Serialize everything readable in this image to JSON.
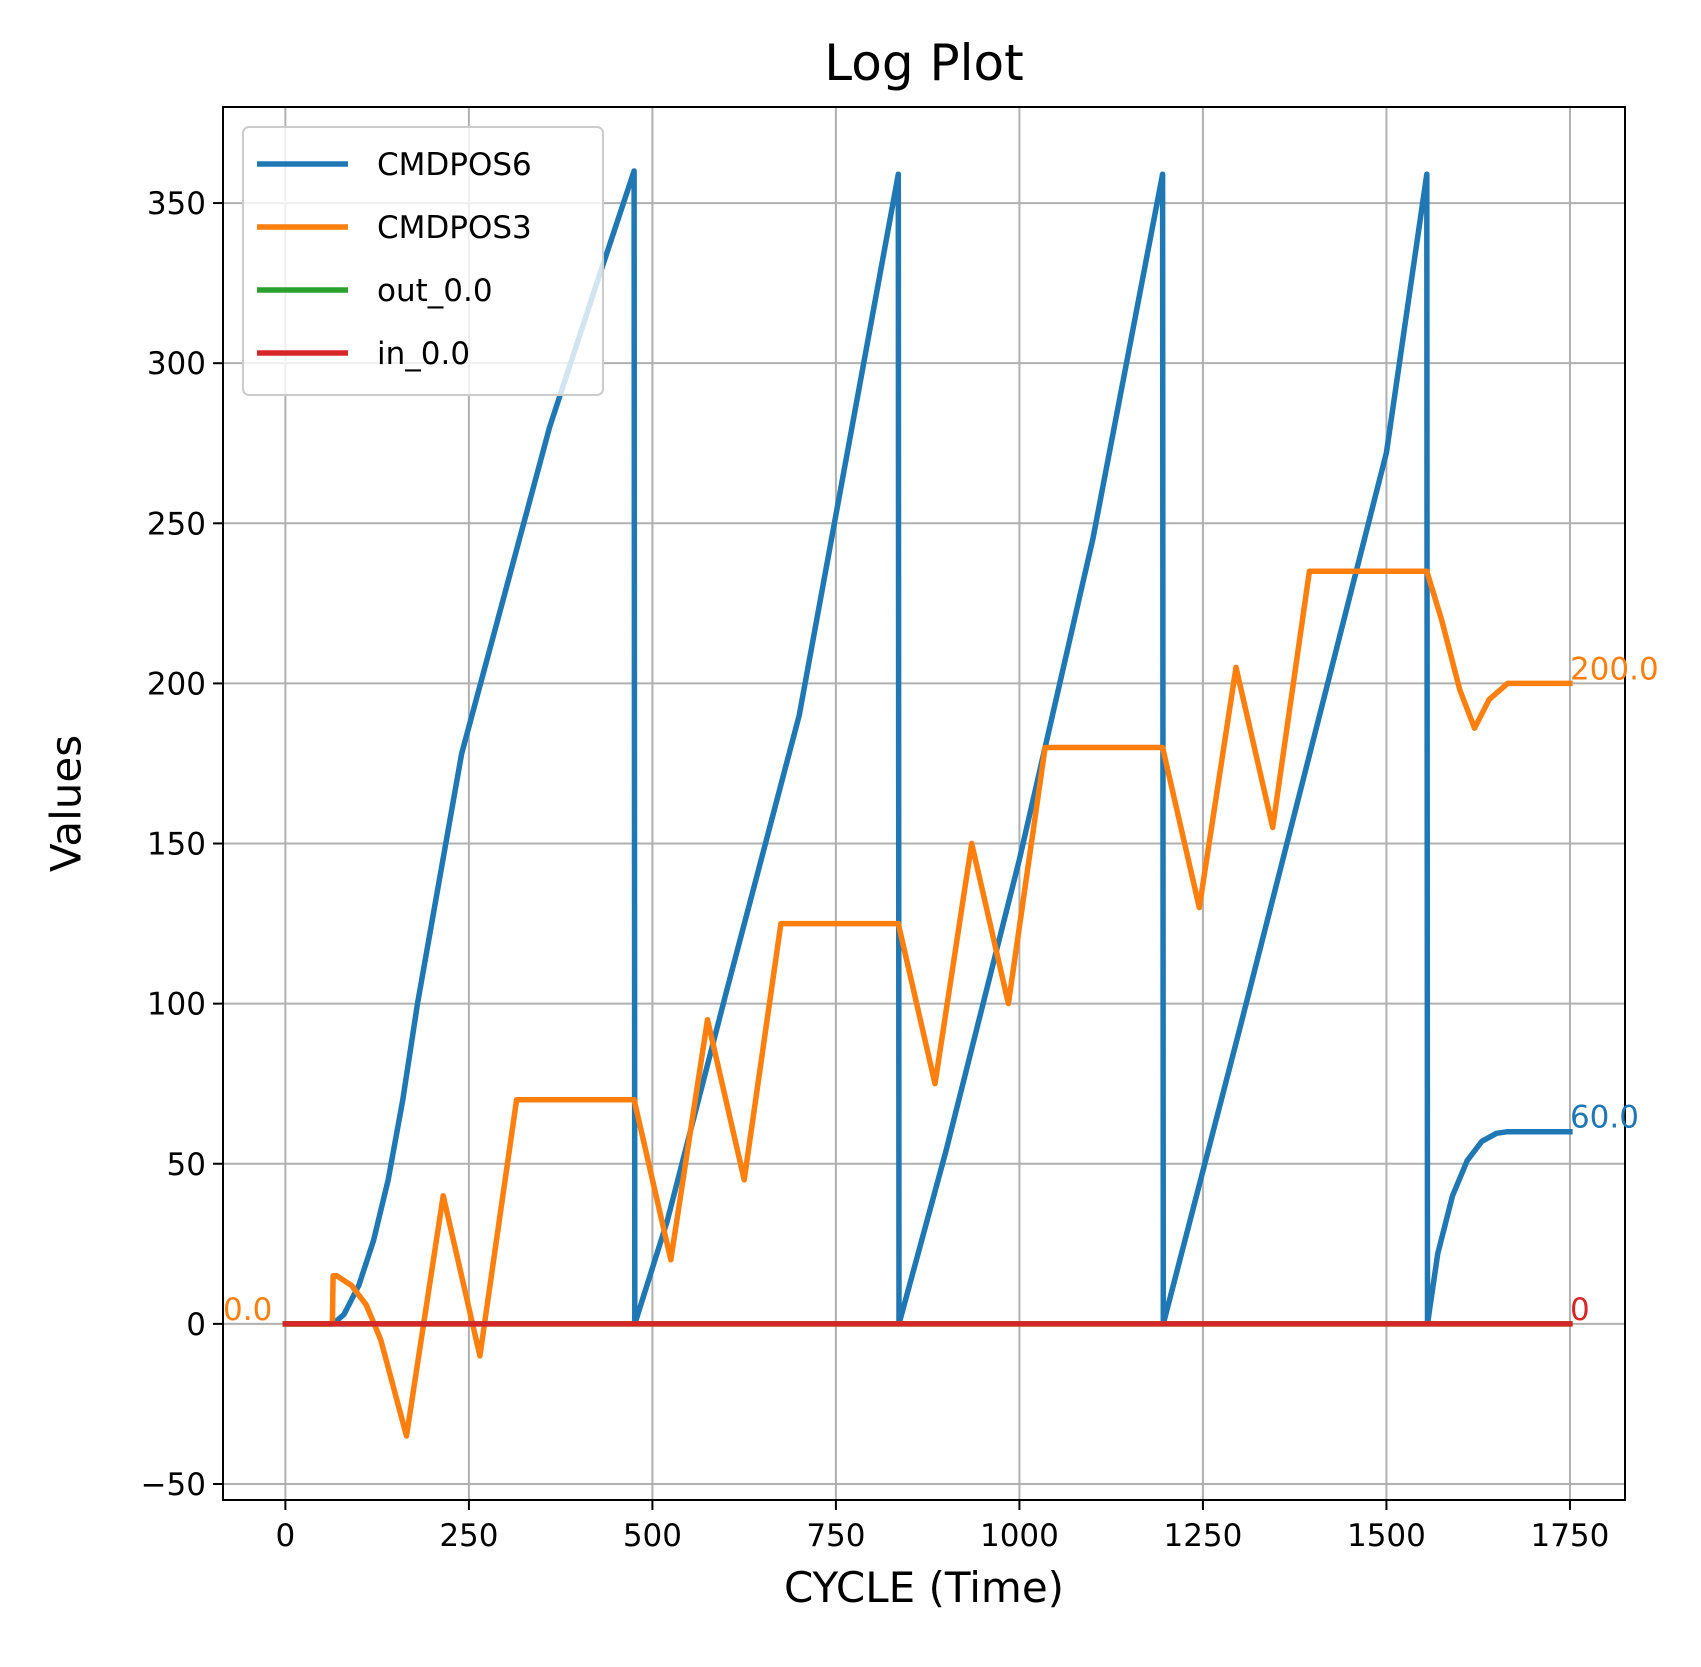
{
  "chart_data": {
    "type": "line",
    "title": "Log Plot",
    "xlabel": "CYCLE (Time)",
    "ylabel": "Values",
    "xlim": [
      -85,
      1825
    ],
    "ylim": [
      -55,
      380
    ],
    "xticks": [
      0,
      250,
      500,
      750,
      1000,
      1250,
      1500,
      1750
    ],
    "yticks": [
      -50,
      0,
      50,
      100,
      150,
      200,
      250,
      300,
      350
    ],
    "xtick_labels": [
      "0",
      "250",
      "500",
      "750",
      "1000",
      "1250",
      "1500",
      "1750"
    ],
    "ytick_labels": [
      "−50",
      "0",
      "50",
      "100",
      "150",
      "200",
      "250",
      "300",
      "350"
    ],
    "grid": true,
    "legend_position": "top-left",
    "series": [
      {
        "name": "CMDPOS6",
        "color": "#1f77b4",
        "x": [
          0,
          65,
          80,
          100,
          120,
          140,
          160,
          180,
          200,
          240,
          300,
          360,
          420,
          475,
          476,
          520,
          600,
          700,
          835,
          836,
          900,
          1000,
          1100,
          1195,
          1196,
          1300,
          1400,
          1500,
          1555,
          1556,
          1570,
          1590,
          1610,
          1630,
          1650,
          1665,
          1750
        ],
        "y": [
          0,
          0,
          3,
          12,
          26,
          45,
          70,
          100,
          126,
          178,
          229,
          280,
          322,
          360,
          0,
          32,
          103,
          190,
          359,
          0,
          54,
          145,
          245,
          359,
          0,
          92,
          182,
          272,
          359,
          0,
          22,
          40,
          51,
          57,
          59.5,
          60,
          60
        ]
      },
      {
        "name": "CMDPOS3",
        "color": "#ff7f0e",
        "x": [
          0,
          64,
          65,
          70,
          90,
          110,
          130,
          165,
          215,
          265,
          315,
          475,
          525,
          575,
          625,
          675,
          835,
          885,
          935,
          985,
          1035,
          1195,
          1245,
          1295,
          1345,
          1395,
          1555,
          1575,
          1600,
          1620,
          1640,
          1665,
          1750
        ],
        "y": [
          0,
          0,
          15,
          15,
          12,
          6,
          -5,
          -35,
          40,
          -10,
          70,
          70,
          20,
          95,
          45,
          125,
          125,
          75,
          150,
          100,
          180,
          180,
          130,
          205,
          155,
          235,
          235,
          220,
          198,
          186,
          195,
          200,
          200
        ]
      },
      {
        "name": "out_0.0",
        "color": "#2ca02c",
        "x": [
          0,
          1750
        ],
        "y": [
          0,
          0
        ]
      },
      {
        "name": "in_0.0",
        "color": "#d62728",
        "x": [
          0,
          1750
        ],
        "y": [
          0,
          0
        ]
      }
    ],
    "annotations": [
      {
        "text": "0.0",
        "x": -85,
        "y": 0,
        "color": "#ff7f0e"
      },
      {
        "text": "200.0",
        "x": 1750,
        "y": 200,
        "color": "#ff7f0e"
      },
      {
        "text": "60.0",
        "x": 1750,
        "y": 60,
        "color": "#1f77b4"
      },
      {
        "text": "0",
        "x": 1750,
        "y": 0,
        "color": "#d62728"
      }
    ]
  }
}
